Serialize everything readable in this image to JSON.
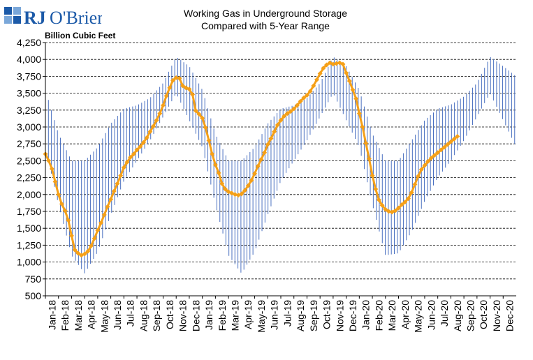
{
  "logo": {
    "text_rj": "RJ",
    "text_obrien": "O'Brien"
  },
  "header": {
    "unit_label": "Billion Cubic Feet",
    "title_line1": "Working Gas in Underground Storage",
    "title_line2": "Compared with 5-Year Range"
  },
  "colors": {
    "range": "#4a70c0",
    "series": "#f5a018",
    "grid": "#000000",
    "logo_blue": "#1c5aa8"
  },
  "chart_data": {
    "type": "line",
    "title": "Working Gas in Underground Storage Compared with 5-Year Range",
    "ylabel": "Billion Cubic Feet",
    "ylim": [
      500,
      4250
    ],
    "yticks": [
      500,
      750,
      1000,
      1250,
      1500,
      1750,
      2000,
      2250,
      2500,
      2750,
      3000,
      3250,
      3500,
      3750,
      4000,
      4250
    ],
    "ytick_labels": [
      "500",
      "750",
      "1,000",
      "1,250",
      "1,500",
      "1,750",
      "2,000",
      "2,250",
      "2,500",
      "2,750",
      "3,000",
      "3,250",
      "3,500",
      "3,750",
      "4,000",
      "4,250"
    ],
    "xlabels": [
      "Jan-18",
      "Feb-18",
      "Mar-18",
      "Apr-18",
      "May-18",
      "Jun-18",
      "Jul-18",
      "Aug-18",
      "Sep-18",
      "Oct-18",
      "Nov-18",
      "Dec-18",
      "Jan-19",
      "Feb-19",
      "Mar-19",
      "Apr-19",
      "May-19",
      "Jun-19",
      "Jul-19",
      "Aug-19",
      "Sep-19",
      "Oct-19",
      "Nov-19",
      "Dec-19",
      "Jan-20",
      "Feb-20",
      "Mar-20",
      "Apr-20",
      "May-20",
      "Jun-20",
      "Jul-20",
      "Aug-20",
      "Sep-20",
      "Oct-20",
      "Nov-20",
      "Dec-20"
    ],
    "grid": "horizontal dashed",
    "range_series": {
      "name": "5-Year Range",
      "month_range": [
        0,
        36
      ],
      "anchors": [
        {
          "month": 0.0,
          "low": 2700,
          "high": 3550
        },
        {
          "month": 1.0,
          "low": 1850,
          "high": 2900
        },
        {
          "month": 2.0,
          "low": 1100,
          "high": 2500
        },
        {
          "month": 3.0,
          "low": 830,
          "high": 2500
        },
        {
          "month": 4.0,
          "low": 1150,
          "high": 2700
        },
        {
          "month": 5.0,
          "low": 1700,
          "high": 3050
        },
        {
          "month": 6.0,
          "low": 2200,
          "high": 3270
        },
        {
          "month": 7.0,
          "low": 2500,
          "high": 3320
        },
        {
          "month": 8.0,
          "low": 2800,
          "high": 3430
        },
        {
          "month": 9.0,
          "low": 3150,
          "high": 3650
        },
        {
          "month": 10.0,
          "low": 3500,
          "high": 4040
        },
        {
          "month": 11.0,
          "low": 3100,
          "high": 3900
        },
        {
          "month": 12.0,
          "low": 2700,
          "high": 3550
        },
        {
          "month": 13.0,
          "low": 1850,
          "high": 2900
        },
        {
          "month": 14.0,
          "low": 1100,
          "high": 2500
        },
        {
          "month": 15.0,
          "low": 830,
          "high": 2500
        },
        {
          "month": 16.0,
          "low": 1150,
          "high": 2700
        },
        {
          "month": 17.0,
          "low": 1700,
          "high": 3050
        },
        {
          "month": 18.0,
          "low": 2200,
          "high": 3270
        },
        {
          "month": 19.0,
          "low": 2500,
          "high": 3320
        },
        {
          "month": 20.0,
          "low": 2800,
          "high": 3430
        },
        {
          "month": 21.0,
          "low": 3150,
          "high": 3650
        },
        {
          "month": 22.0,
          "low": 3500,
          "high": 4040
        },
        {
          "month": 23.0,
          "low": 3100,
          "high": 3900
        },
        {
          "month": 24.0,
          "low": 2700,
          "high": 3550
        },
        {
          "month": 25.0,
          "low": 1850,
          "high": 2900
        },
        {
          "month": 26.0,
          "low": 1100,
          "high": 2500
        },
        {
          "month": 27.0,
          "low": 1130,
          "high": 2500
        },
        {
          "month": 28.0,
          "low": 1450,
          "high": 2800
        },
        {
          "month": 29.0,
          "low": 1900,
          "high": 3100
        },
        {
          "month": 30.0,
          "low": 2250,
          "high": 3270
        },
        {
          "month": 31.0,
          "low": 2500,
          "high": 3330
        },
        {
          "month": 32.0,
          "low": 2800,
          "high": 3450
        },
        {
          "month": 33.0,
          "low": 3150,
          "high": 3650
        },
        {
          "month": 34.0,
          "low": 3500,
          "high": 4040
        },
        {
          "month": 35.0,
          "low": 3100,
          "high": 3900
        },
        {
          "month": 36.0,
          "low": 2700,
          "high": 3750
        }
      ]
    },
    "series": [
      {
        "kind": "actual storage",
        "points": [
          {
            "month": 0.0,
            "value": 2600
          },
          {
            "month": 0.25,
            "value": 2500
          },
          {
            "month": 0.5,
            "value": 2380
          },
          {
            "month": 0.75,
            "value": 2190
          },
          {
            "month": 1.0,
            "value": 2000
          },
          {
            "month": 1.25,
            "value": 1860
          },
          {
            "month": 1.5,
            "value": 1760
          },
          {
            "month": 1.75,
            "value": 1620
          },
          {
            "month": 2.0,
            "value": 1390
          },
          {
            "month": 2.25,
            "value": 1180
          },
          {
            "month": 2.5,
            "value": 1130
          },
          {
            "month": 2.75,
            "value": 1100
          },
          {
            "month": 3.0,
            "value": 1120
          },
          {
            "month": 3.25,
            "value": 1160
          },
          {
            "month": 3.5,
            "value": 1240
          },
          {
            "month": 3.75,
            "value": 1350
          },
          {
            "month": 4.0,
            "value": 1470
          },
          {
            "month": 4.25,
            "value": 1580
          },
          {
            "month": 4.5,
            "value": 1700
          },
          {
            "month": 4.75,
            "value": 1820
          },
          {
            "month": 5.0,
            "value": 1930
          },
          {
            "month": 5.25,
            "value": 2050
          },
          {
            "month": 5.5,
            "value": 2160
          },
          {
            "month": 5.75,
            "value": 2280
          },
          {
            "month": 6.0,
            "value": 2400
          },
          {
            "month": 6.25,
            "value": 2480
          },
          {
            "month": 6.5,
            "value": 2550
          },
          {
            "month": 6.75,
            "value": 2600
          },
          {
            "month": 7.0,
            "value": 2660
          },
          {
            "month": 7.25,
            "value": 2710
          },
          {
            "month": 7.5,
            "value": 2770
          },
          {
            "month": 7.75,
            "value": 2840
          },
          {
            "month": 8.0,
            "value": 2930
          },
          {
            "month": 8.25,
            "value": 3010
          },
          {
            "month": 8.5,
            "value": 3100
          },
          {
            "month": 8.75,
            "value": 3200
          },
          {
            "month": 9.0,
            "value": 3320
          },
          {
            "month": 9.25,
            "value": 3460
          },
          {
            "month": 9.5,
            "value": 3580
          },
          {
            "month": 9.75,
            "value": 3690
          },
          {
            "month": 10.0,
            "value": 3730
          },
          {
            "month": 10.25,
            "value": 3720
          },
          {
            "month": 10.5,
            "value": 3610
          },
          {
            "month": 10.75,
            "value": 3580
          },
          {
            "month": 11.0,
            "value": 3560
          },
          {
            "month": 11.25,
            "value": 3480
          },
          {
            "month": 11.5,
            "value": 3240
          },
          {
            "month": 11.75,
            "value": 3190
          },
          {
            "month": 12.0,
            "value": 3130
          },
          {
            "month": 12.25,
            "value": 2990
          },
          {
            "month": 12.5,
            "value": 2800
          },
          {
            "month": 12.75,
            "value": 2600
          },
          {
            "month": 13.0,
            "value": 2440
          },
          {
            "month": 13.25,
            "value": 2320
          },
          {
            "month": 13.5,
            "value": 2160
          },
          {
            "month": 13.75,
            "value": 2080
          },
          {
            "month": 14.0,
            "value": 2040
          },
          {
            "month": 14.25,
            "value": 2020
          },
          {
            "month": 14.5,
            "value": 2000
          },
          {
            "month": 14.75,
            "value": 1990
          },
          {
            "month": 15.0,
            "value": 2010
          },
          {
            "month": 15.25,
            "value": 2060
          },
          {
            "month": 15.5,
            "value": 2130
          },
          {
            "month": 15.75,
            "value": 2210
          },
          {
            "month": 16.0,
            "value": 2310
          },
          {
            "month": 16.25,
            "value": 2420
          },
          {
            "month": 16.5,
            "value": 2520
          },
          {
            "month": 16.75,
            "value": 2620
          },
          {
            "month": 17.0,
            "value": 2740
          },
          {
            "month": 17.25,
            "value": 2830
          },
          {
            "month": 17.5,
            "value": 2930
          },
          {
            "month": 17.75,
            "value": 3030
          },
          {
            "month": 18.0,
            "value": 3100
          },
          {
            "month": 18.25,
            "value": 3160
          },
          {
            "month": 18.5,
            "value": 3200
          },
          {
            "month": 18.75,
            "value": 3230
          },
          {
            "month": 19.0,
            "value": 3270
          },
          {
            "month": 19.25,
            "value": 3320
          },
          {
            "month": 19.5,
            "value": 3380
          },
          {
            "month": 19.75,
            "value": 3430
          },
          {
            "month": 20.0,
            "value": 3470
          },
          {
            "month": 20.25,
            "value": 3530
          },
          {
            "month": 20.5,
            "value": 3610
          },
          {
            "month": 20.75,
            "value": 3700
          },
          {
            "month": 21.0,
            "value": 3790
          },
          {
            "month": 21.25,
            "value": 3870
          },
          {
            "month": 21.5,
            "value": 3920
          },
          {
            "month": 21.75,
            "value": 3950
          },
          {
            "month": 22.0,
            "value": 3930
          },
          {
            "month": 22.25,
            "value": 3940
          },
          {
            "month": 22.5,
            "value": 3950
          },
          {
            "month": 22.75,
            "value": 3930
          },
          {
            "month": 23.0,
            "value": 3800
          },
          {
            "month": 23.25,
            "value": 3680
          },
          {
            "month": 23.5,
            "value": 3550
          },
          {
            "month": 23.75,
            "value": 3420
          },
          {
            "month": 24.0,
            "value": 3200
          },
          {
            "month": 24.25,
            "value": 3000
          },
          {
            "month": 24.5,
            "value": 2760
          },
          {
            "month": 24.75,
            "value": 2530
          },
          {
            "month": 25.0,
            "value": 2280
          },
          {
            "month": 25.25,
            "value": 2080
          },
          {
            "month": 25.5,
            "value": 1920
          },
          {
            "month": 25.75,
            "value": 1840
          },
          {
            "month": 26.0,
            "value": 1780
          },
          {
            "month": 26.25,
            "value": 1750
          },
          {
            "month": 26.5,
            "value": 1740
          },
          {
            "month": 26.75,
            "value": 1760
          },
          {
            "month": 27.0,
            "value": 1800
          },
          {
            "month": 27.25,
            "value": 1850
          },
          {
            "month": 27.5,
            "value": 1890
          },
          {
            "month": 27.75,
            "value": 1940
          },
          {
            "month": 28.0,
            "value": 2030
          },
          {
            "month": 28.25,
            "value": 2150
          },
          {
            "month": 28.5,
            "value": 2270
          },
          {
            "month": 28.75,
            "value": 2370
          },
          {
            "month": 29.0,
            "value": 2430
          },
          {
            "month": 29.25,
            "value": 2490
          },
          {
            "month": 29.5,
            "value": 2540
          },
          {
            "month": 29.75,
            "value": 2580
          },
          {
            "month": 30.0,
            "value": 2620
          },
          {
            "month": 30.25,
            "value": 2660
          },
          {
            "month": 30.5,
            "value": 2700
          },
          {
            "month": 30.75,
            "value": 2740
          },
          {
            "month": 31.0,
            "value": 2780
          },
          {
            "month": 31.25,
            "value": 2820
          },
          {
            "month": 31.5,
            "value": 2860
          }
        ]
      }
    ]
  }
}
